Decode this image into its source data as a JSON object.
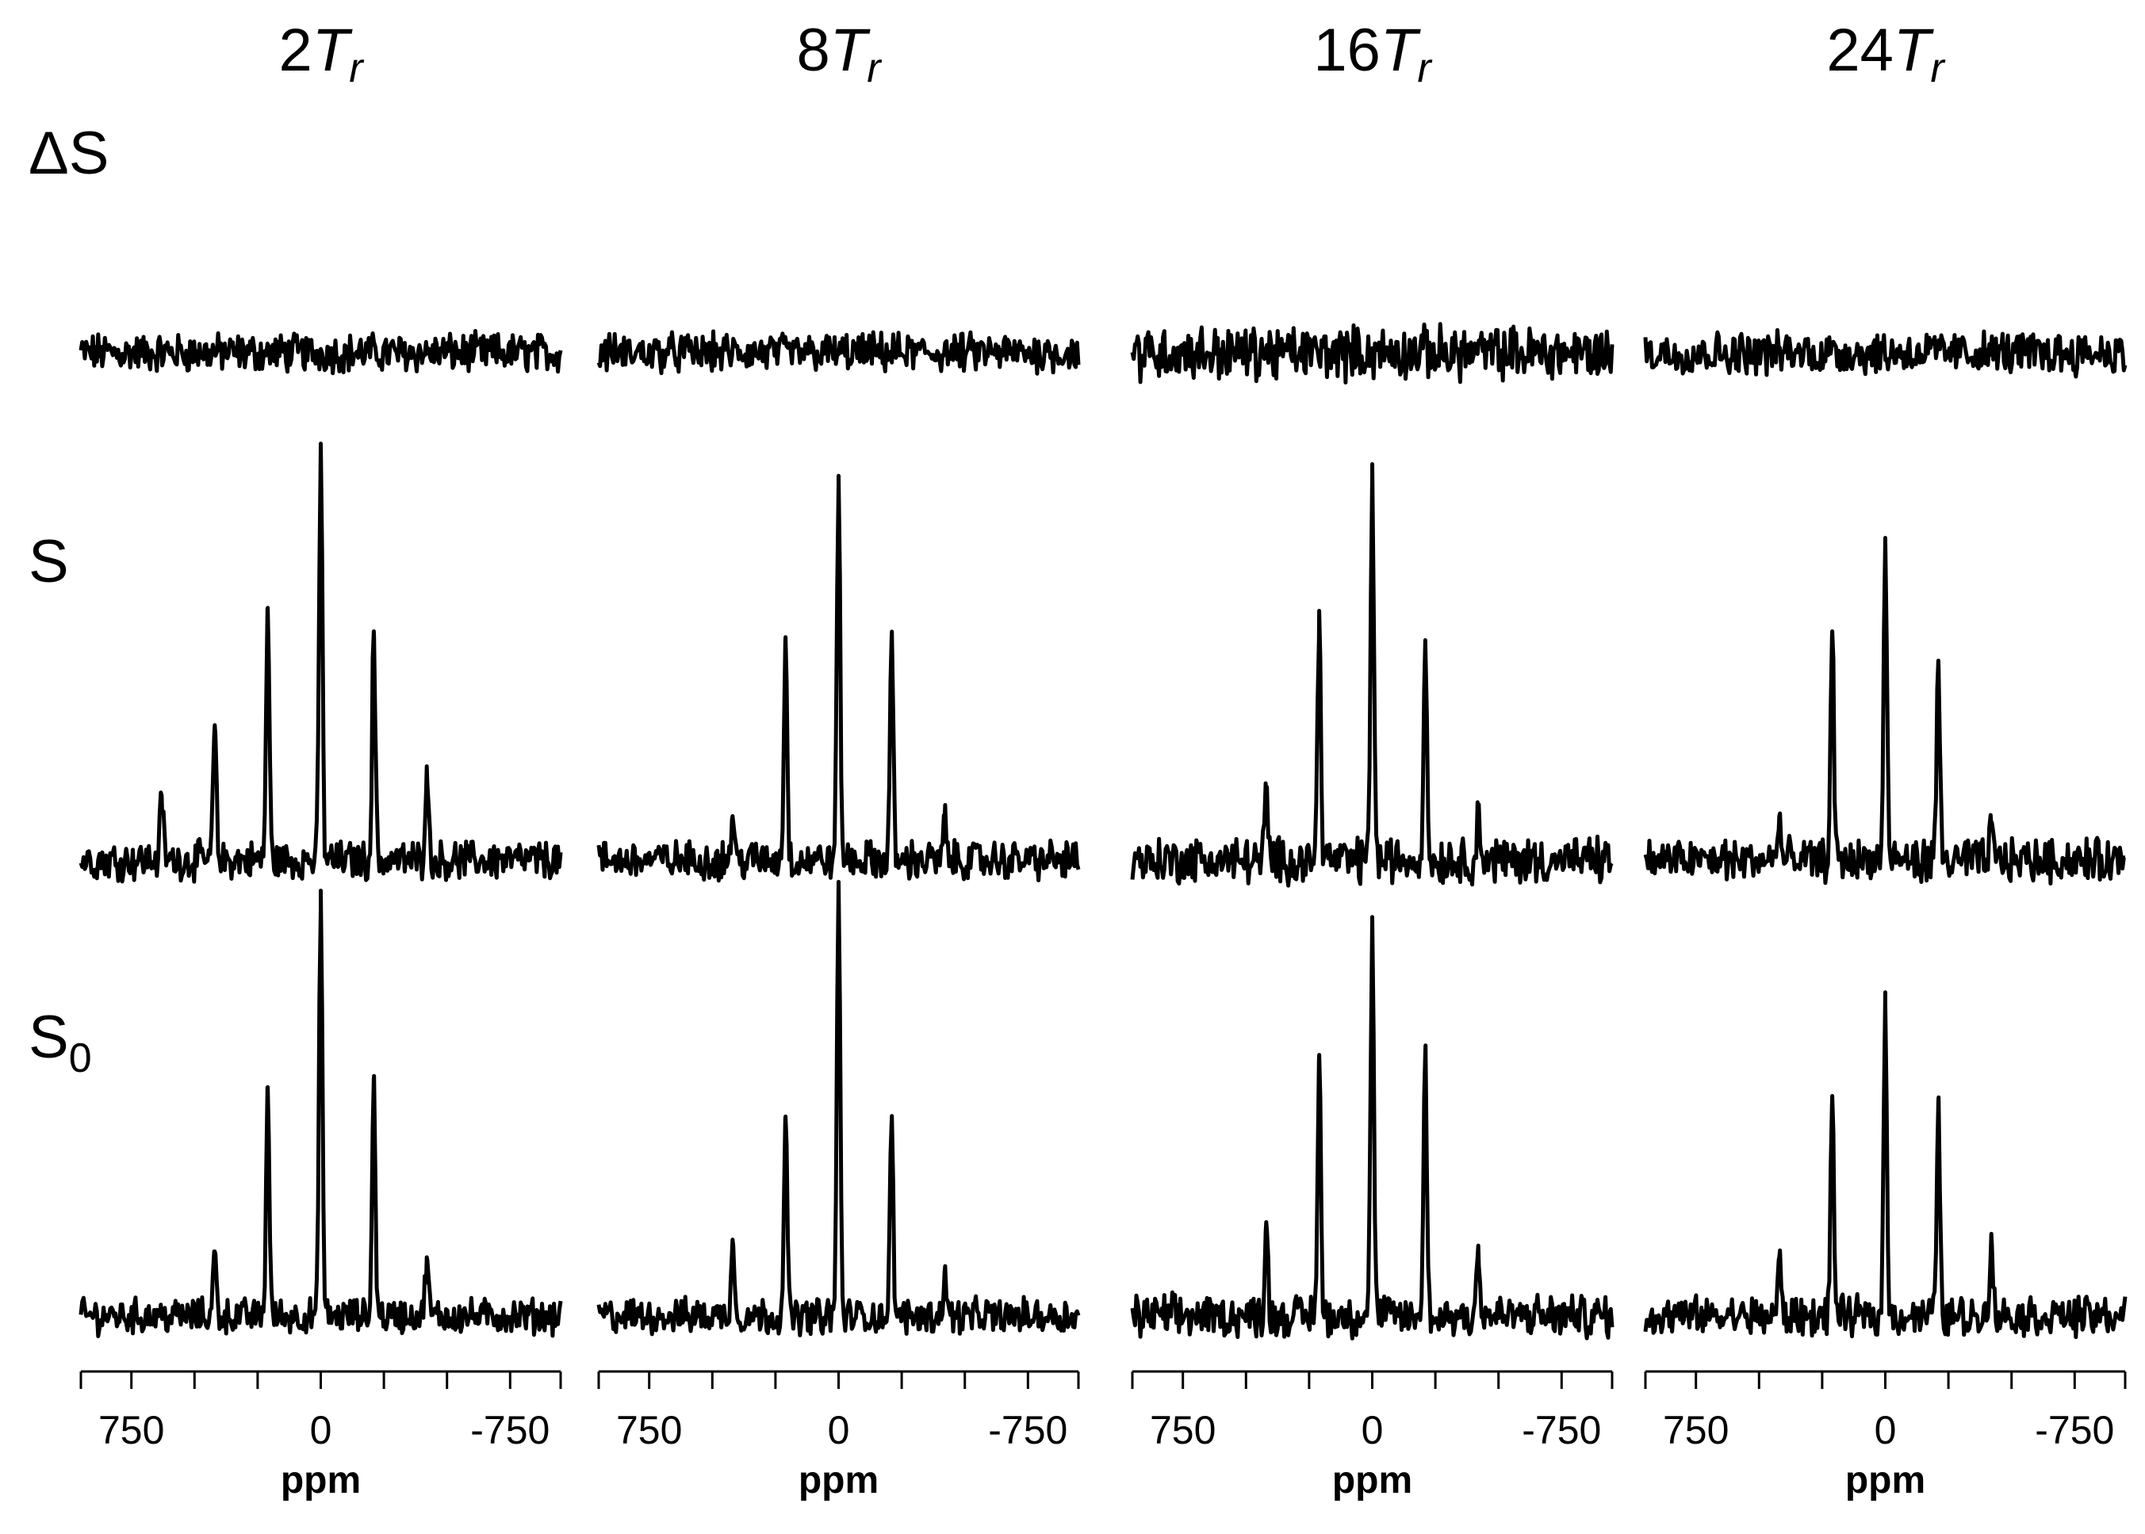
{
  "chart_data": {
    "type": "line",
    "description_rows": [
      "ΔS",
      "S",
      "S0"
    ],
    "row_labels": [
      {
        "main": "ΔS",
        "sub": ""
      },
      {
        "main": "S",
        "sub": ""
      },
      {
        "main": "S",
        "sub": "0"
      }
    ],
    "xlabel": "ppm",
    "xlim": [
      950,
      -950
    ],
    "x_ticks_major": [
      750,
      0,
      -750
    ],
    "x_ticks_minor": [
      500,
      250,
      -250,
      -500
    ],
    "panels": [
      {
        "title_num": "2",
        "title_sym": "T",
        "title_sub": "r",
        "series": [
          {
            "name": "ΔS",
            "noise": 0.55,
            "peaks": []
          },
          {
            "name": "S",
            "noise": 0.55,
            "peaks": [
              {
                "ppm": 630,
                "height": 2.2
              },
              {
                "ppm": 420,
                "height": 4.6
              },
              {
                "ppm": 210,
                "height": 8.6
              },
              {
                "ppm": 0,
                "height": 14.2
              },
              {
                "ppm": -210,
                "height": 7.8
              },
              {
                "ppm": -420,
                "height": 3.2
              }
            ]
          },
          {
            "name": "S0",
            "noise": 0.5,
            "peaks": [
              {
                "ppm": 420,
                "height": 2.2
              },
              {
                "ppm": 210,
                "height": 7.8
              },
              {
                "ppm": 0,
                "height": 14.5
              },
              {
                "ppm": -210,
                "height": 8.1
              },
              {
                "ppm": -420,
                "height": 2.0
              }
            ]
          }
        ]
      },
      {
        "title_num": "8",
        "title_sym": "T",
        "title_sub": "r",
        "series": [
          {
            "name": "ΔS",
            "noise": 0.55,
            "peaks": []
          },
          {
            "name": "S",
            "noise": 0.55,
            "peaks": [
              {
                "ppm": 420,
                "height": 1.5
              },
              {
                "ppm": 210,
                "height": 7.6
              },
              {
                "ppm": 0,
                "height": 13.1
              },
              {
                "ppm": -210,
                "height": 7.6
              },
              {
                "ppm": -420,
                "height": 1.4
              }
            ]
          },
          {
            "name": "S0",
            "noise": 0.5,
            "peaks": [
              {
                "ppm": 420,
                "height": 2.6
              },
              {
                "ppm": 210,
                "height": 6.8
              },
              {
                "ppm": 0,
                "height": 14.8
              },
              {
                "ppm": -210,
                "height": 6.6
              },
              {
                "ppm": -420,
                "height": 1.5
              }
            ]
          }
        ]
      },
      {
        "title_num": "16",
        "title_sym": "T",
        "title_sub": "r",
        "series": [
          {
            "name": "ΔS",
            "noise": 0.75,
            "peaks": []
          },
          {
            "name": "S",
            "noise": 0.65,
            "peaks": [
              {
                "ppm": 420,
                "height": 2.3
              },
              {
                "ppm": 210,
                "height": 8.5
              },
              {
                "ppm": 0,
                "height": 13.5
              },
              {
                "ppm": -210,
                "height": 7.5
              },
              {
                "ppm": -420,
                "height": 1.6
              }
            ]
          },
          {
            "name": "S0",
            "noise": 0.6,
            "peaks": [
              {
                "ppm": 420,
                "height": 3.2
              },
              {
                "ppm": 210,
                "height": 8.9
              },
              {
                "ppm": 0,
                "height": 13.6
              },
              {
                "ppm": -210,
                "height": 9.0
              },
              {
                "ppm": -420,
                "height": 2.4
              }
            ]
          }
        ]
      },
      {
        "title_num": "24",
        "title_sym": "T",
        "title_sub": "r",
        "series": [
          {
            "name": "ΔS",
            "noise": 0.6,
            "peaks": []
          },
          {
            "name": "S",
            "noise": 0.6,
            "peaks": [
              {
                "ppm": 420,
                "height": 1.5
              },
              {
                "ppm": 210,
                "height": 7.8
              },
              {
                "ppm": 0,
                "height": 10.9
              },
              {
                "ppm": -210,
                "height": 6.8
              },
              {
                "ppm": -420,
                "height": 1.2
              }
            ]
          },
          {
            "name": "S0",
            "noise": 0.55,
            "peaks": [
              {
                "ppm": 420,
                "height": 2.0
              },
              {
                "ppm": 210,
                "height": 7.5
              },
              {
                "ppm": 0,
                "height": 10.6
              },
              {
                "ppm": -210,
                "height": 7.3
              },
              {
                "ppm": -420,
                "height": 2.8
              }
            ]
          }
        ]
      }
    ]
  }
}
